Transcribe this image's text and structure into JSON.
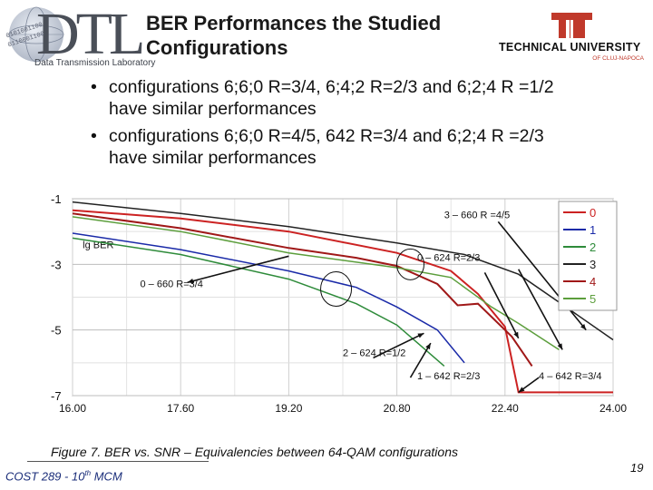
{
  "header": {
    "lab_logo_text": "DTL",
    "lab_logo_subtitle": "Data Transmission Laboratory",
    "lab_logo_binary_1": "0101001100",
    "lab_logo_binary_2": "0110001100",
    "title_line1": "BER Performances the Studied",
    "title_line2": "Configurations",
    "university_name": "TECHNICAL UNIVERSITY",
    "university_sub": "OF CLUJ-NAPOCA"
  },
  "bullets": [
    {
      "line1": "configurations 6;6;0 R=3/4, 6;4;2 R=2/3 and 6;2;4 R =1/2",
      "line2": "have similar performances"
    },
    {
      "line1": "configurations 6;6;0 R=4/5, 642 R=3/4 and 6;2;4 R =2/3",
      "line2": "have similar performances"
    }
  ],
  "chart_data": {
    "type": "line",
    "ylabel": "lg BER",
    "xlim": [
      16.0,
      24.0
    ],
    "ylim": [
      -7,
      -1
    ],
    "x_ticks": [
      "16.00",
      "17.60",
      "19.20",
      "20.80",
      "22.40",
      "24.00"
    ],
    "y_ticks": [
      "-1",
      "-3",
      "-5",
      "-7"
    ],
    "grid": true,
    "legend_position": "top-right",
    "series": [
      {
        "name": "0",
        "color": "#cc2222",
        "points": [
          [
            16.0,
            -1.35
          ],
          [
            17.6,
            -1.6
          ],
          [
            19.2,
            -2.0
          ],
          [
            20.8,
            -2.65
          ],
          [
            21.6,
            -3.2
          ],
          [
            22.0,
            -3.9
          ],
          [
            22.4,
            -4.9
          ],
          [
            22.6,
            -6.9
          ],
          [
            24.0,
            -6.9
          ]
        ]
      },
      {
        "name": "1",
        "color": "#1a2aa8",
        "points": [
          [
            16.0,
            -2.05
          ],
          [
            17.6,
            -2.55
          ],
          [
            19.2,
            -3.2
          ],
          [
            20.2,
            -3.7
          ],
          [
            20.8,
            -4.3
          ],
          [
            21.4,
            -5.0
          ],
          [
            21.8,
            -6.0
          ]
        ]
      },
      {
        "name": "2",
        "color": "#2e8b3a",
        "points": [
          [
            16.0,
            -2.2
          ],
          [
            17.6,
            -2.7
          ],
          [
            19.2,
            -3.45
          ],
          [
            20.2,
            -4.2
          ],
          [
            20.8,
            -4.85
          ],
          [
            21.5,
            -6.1
          ]
        ]
      },
      {
        "name": "3",
        "color": "#222222",
        "points": [
          [
            16.0,
            -1.1
          ],
          [
            17.6,
            -1.45
          ],
          [
            19.2,
            -1.85
          ],
          [
            20.8,
            -2.35
          ],
          [
            21.8,
            -2.7
          ],
          [
            22.6,
            -3.3
          ],
          [
            23.3,
            -4.3
          ],
          [
            24.0,
            -5.3
          ]
        ]
      },
      {
        "name": "4",
        "color": "#a01818",
        "points": [
          [
            16.0,
            -1.45
          ],
          [
            17.6,
            -1.9
          ],
          [
            19.2,
            -2.5
          ],
          [
            20.2,
            -2.8
          ],
          [
            20.8,
            -3.05
          ],
          [
            21.4,
            -3.6
          ],
          [
            21.7,
            -4.25
          ],
          [
            22.0,
            -4.2
          ],
          [
            22.5,
            -5.2
          ],
          [
            22.8,
            -6.1
          ]
        ]
      },
      {
        "name": "5",
        "color": "#5c9e3c",
        "points": [
          [
            16.0,
            -1.55
          ],
          [
            17.6,
            -2.0
          ],
          [
            19.2,
            -2.65
          ],
          [
            20.8,
            -3.1
          ],
          [
            21.6,
            -3.4
          ],
          [
            22.2,
            -4.3
          ],
          [
            22.6,
            -4.8
          ],
          [
            23.2,
            -5.6
          ]
        ]
      }
    ],
    "annotations": [
      {
        "text": "3 – 660 R =4/5",
        "x": 21.5,
        "y": -1.6
      },
      {
        "text": "0 – 624 R=2/3",
        "x": 21.1,
        "y": -2.9
      },
      {
        "text": "0 – 660 R=3/4",
        "x": 17.0,
        "y": -3.7
      },
      {
        "text": "2 – 624 R=1/2",
        "x": 20.0,
        "y": -5.8
      },
      {
        "text": "1 – 642 R=2/3",
        "x": 21.1,
        "y": -6.5
      },
      {
        "text": "4 – 642 R=3/4",
        "x": 22.9,
        "y": -6.5
      }
    ]
  },
  "caption": {
    "label": "Figure 7",
    "text": ". BER vs. SNR – Equivalencies between 64-QAM configurations"
  },
  "footer": {
    "conference": "COST 289 - 10",
    "sup": "th",
    "meeting": " MCM",
    "page_number": "19"
  }
}
